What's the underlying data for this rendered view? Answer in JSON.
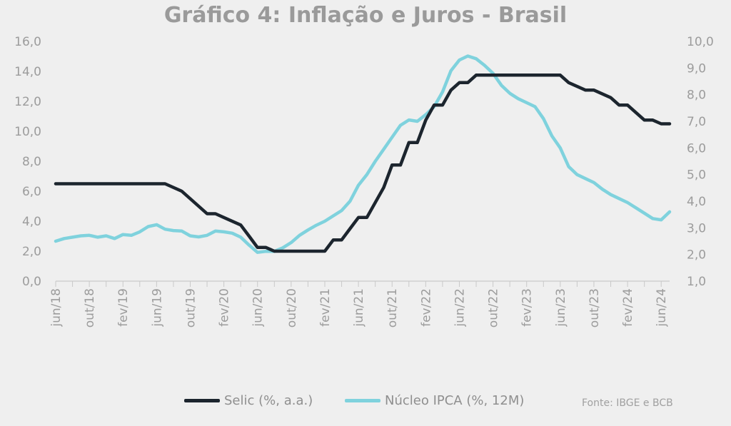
{
  "chart_data": {
    "type": "line",
    "title": "Gráfico 4: Inflação e Juros - Brasil",
    "y_left": {
      "ticks": [
        "0,0",
        "2,0",
        "4,0",
        "6,0",
        "8,0",
        "10,0",
        "12,0",
        "14,0",
        "16,0"
      ],
      "range": [
        0,
        16
      ]
    },
    "y_right": {
      "ticks": [
        "1,0",
        "2,0",
        "3,0",
        "4,0",
        "5,0",
        "6,0",
        "7,0",
        "8,0",
        "9,0",
        "10,0"
      ],
      "range": [
        1,
        10
      ]
    },
    "x_tick_labels": [
      "jun/18",
      "out/18",
      "fev/19",
      "jun/19",
      "out/19",
      "fev/20",
      "jun/20",
      "out/20",
      "fev/21",
      "jun/21",
      "out/21",
      "fev/22",
      "jun/22",
      "out/22",
      "fev/23",
      "jun/23",
      "out/23",
      "fev/24",
      "jun/24"
    ],
    "x_tick_month_index": [
      0,
      4,
      8,
      12,
      16,
      20,
      24,
      28,
      32,
      36,
      40,
      44,
      48,
      52,
      56,
      60,
      64,
      68,
      72
    ],
    "series": [
      {
        "name": "Selic (%, a.a.)",
        "axis": "left",
        "color": "#1c252e",
        "x": [
          0,
          13,
          15,
          16,
          18,
          19,
          20,
          22,
          23,
          24,
          25,
          26,
          27,
          28,
          29,
          31,
          32,
          33,
          34,
          35,
          36,
          37,
          38,
          39,
          40,
          41,
          42,
          43,
          44,
          45,
          46,
          47,
          48,
          49,
          50,
          51,
          52,
          56,
          60,
          61,
          63,
          64,
          66,
          67,
          68,
          69,
          70,
          71,
          72,
          73
        ],
        "values": [
          6.5,
          6.5,
          6.0,
          5.5,
          4.5,
          4.5,
          4.25,
          3.75,
          3.0,
          2.25,
          2.25,
          2.0,
          2.0,
          2.0,
          2.0,
          2.0,
          2.0,
          2.75,
          2.75,
          3.5,
          4.25,
          4.25,
          5.25,
          6.25,
          7.75,
          7.75,
          9.25,
          9.25,
          10.75,
          11.75,
          11.75,
          12.75,
          13.25,
          13.25,
          13.75,
          13.75,
          13.75,
          13.75,
          13.75,
          13.25,
          12.75,
          12.75,
          12.25,
          11.75,
          11.75,
          11.25,
          10.75,
          10.75,
          10.5,
          10.5
        ]
      },
      {
        "name": "Núcleo IPCA (%, 12M)",
        "axis": "right",
        "color": "#7fd2dd",
        "x": [
          0,
          1,
          2,
          3,
          4,
          5,
          6,
          7,
          8,
          9,
          10,
          11,
          12,
          13,
          14,
          15,
          16,
          17,
          18,
          19,
          20,
          21,
          22,
          23,
          24,
          25,
          26,
          27,
          28,
          29,
          30,
          31,
          32,
          33,
          34,
          35,
          36,
          37,
          38,
          39,
          40,
          41,
          42,
          43,
          44,
          45,
          46,
          47,
          48,
          49,
          50,
          51,
          52,
          53,
          54,
          55,
          56,
          57,
          58,
          59,
          60,
          61,
          62,
          63,
          64,
          65,
          66,
          67,
          68,
          69,
          70,
          71,
          72,
          73
        ],
        "values": [
          2.5,
          2.6,
          2.65,
          2.7,
          2.72,
          2.65,
          2.7,
          2.6,
          2.75,
          2.72,
          2.85,
          3.05,
          3.12,
          2.95,
          2.9,
          2.88,
          2.7,
          2.66,
          2.72,
          2.88,
          2.85,
          2.8,
          2.65,
          2.35,
          2.08,
          2.12,
          2.12,
          2.25,
          2.45,
          2.72,
          2.92,
          3.1,
          3.25,
          3.45,
          3.65,
          4.0,
          4.6,
          5.0,
          5.5,
          5.95,
          6.4,
          6.85,
          7.05,
          7.0,
          7.25,
          7.55,
          8.1,
          8.9,
          9.3,
          9.45,
          9.35,
          9.1,
          8.8,
          8.35,
          8.05,
          7.85,
          7.7,
          7.55,
          7.1,
          6.45,
          6.0,
          5.3,
          5.0,
          4.85,
          4.7,
          4.45,
          4.25,
          4.1,
          3.95,
          3.75,
          3.55,
          3.35,
          3.3,
          3.6
        ]
      }
    ],
    "legend": {
      "placement": "bottom-center"
    },
    "grid": false
  },
  "source": "Fonte: IBGE e BCB"
}
